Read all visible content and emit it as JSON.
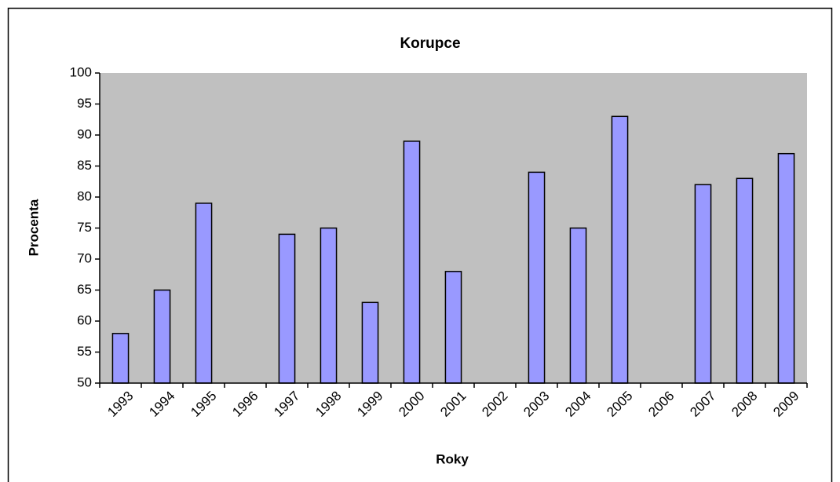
{
  "chart_data": {
    "type": "bar",
    "title": "Korupce",
    "x_label": "Roky",
    "y_label": "Procenta",
    "categories": [
      "1993",
      "1994",
      "1995",
      "1996",
      "1997",
      "1998",
      "1999",
      "2000",
      "2001",
      "2002",
      "2003",
      "2004",
      "2005",
      "2006",
      "2007",
      "2008",
      "2009"
    ],
    "values": [
      58,
      65,
      79,
      null,
      74,
      75,
      63,
      89,
      68,
      null,
      84,
      75,
      93,
      null,
      82,
      83,
      87
    ],
    "color": "#9999ff",
    "plot_background": "#c0c0c0",
    "ylim": [
      50,
      100
    ],
    "yticks": [
      50,
      55,
      60,
      65,
      70,
      75,
      80,
      85,
      90,
      95,
      100
    ],
    "grid": false
  }
}
